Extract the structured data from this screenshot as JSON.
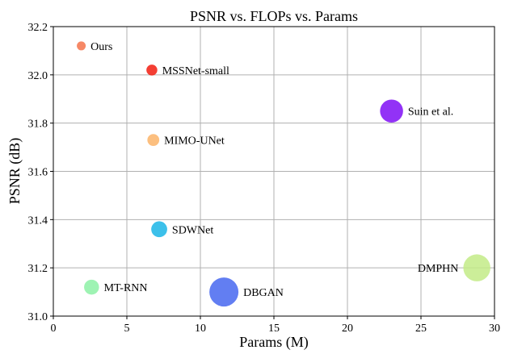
{
  "chart_data": {
    "type": "scatter",
    "title": "PSNR vs. FLOPs vs. Params",
    "xlabel": "Params (M)",
    "ylabel": "PSNR (dB)",
    "xlim": [
      0,
      30
    ],
    "ylim": [
      31.0,
      32.2
    ],
    "xticks": [
      "0",
      "5",
      "10",
      "15",
      "20",
      "25",
      "30"
    ],
    "yticks": [
      "31.0",
      "31.2",
      "31.4",
      "31.6",
      "31.8",
      "32.0",
      "32.2"
    ],
    "grid": true,
    "points": [
      {
        "name": "Ours",
        "x": 1.9,
        "y": 32.12,
        "size": 2,
        "color": "#f4734b",
        "label_side": "right"
      },
      {
        "name": "MSSNet-small",
        "x": 6.7,
        "y": 32.02,
        "size": 3,
        "color": "#f21c0f",
        "label_side": "right"
      },
      {
        "name": "Suin et al.",
        "x": 23.0,
        "y": 31.85,
        "size": 9,
        "color": "#7f0ef5",
        "label_side": "right"
      },
      {
        "name": "MIMO-UNet",
        "x": 6.8,
        "y": 31.73,
        "size": 3.5,
        "color": "#fbb469",
        "label_side": "right"
      },
      {
        "name": "SDWNet",
        "x": 7.2,
        "y": 31.36,
        "size": 5.5,
        "color": "#1ab5e6",
        "label_side": "right"
      },
      {
        "name": "DMPHN",
        "x": 28.8,
        "y": 31.2,
        "size": 11,
        "color": "#c3eb87",
        "label_side": "left"
      },
      {
        "name": "MT-RNN",
        "x": 2.6,
        "y": 31.12,
        "size": 5,
        "color": "#8df1a6",
        "label_side": "right"
      },
      {
        "name": "DBGAN",
        "x": 11.6,
        "y": 31.1,
        "size": 12,
        "color": "#4767f0",
        "label_side": "right"
      }
    ]
  }
}
